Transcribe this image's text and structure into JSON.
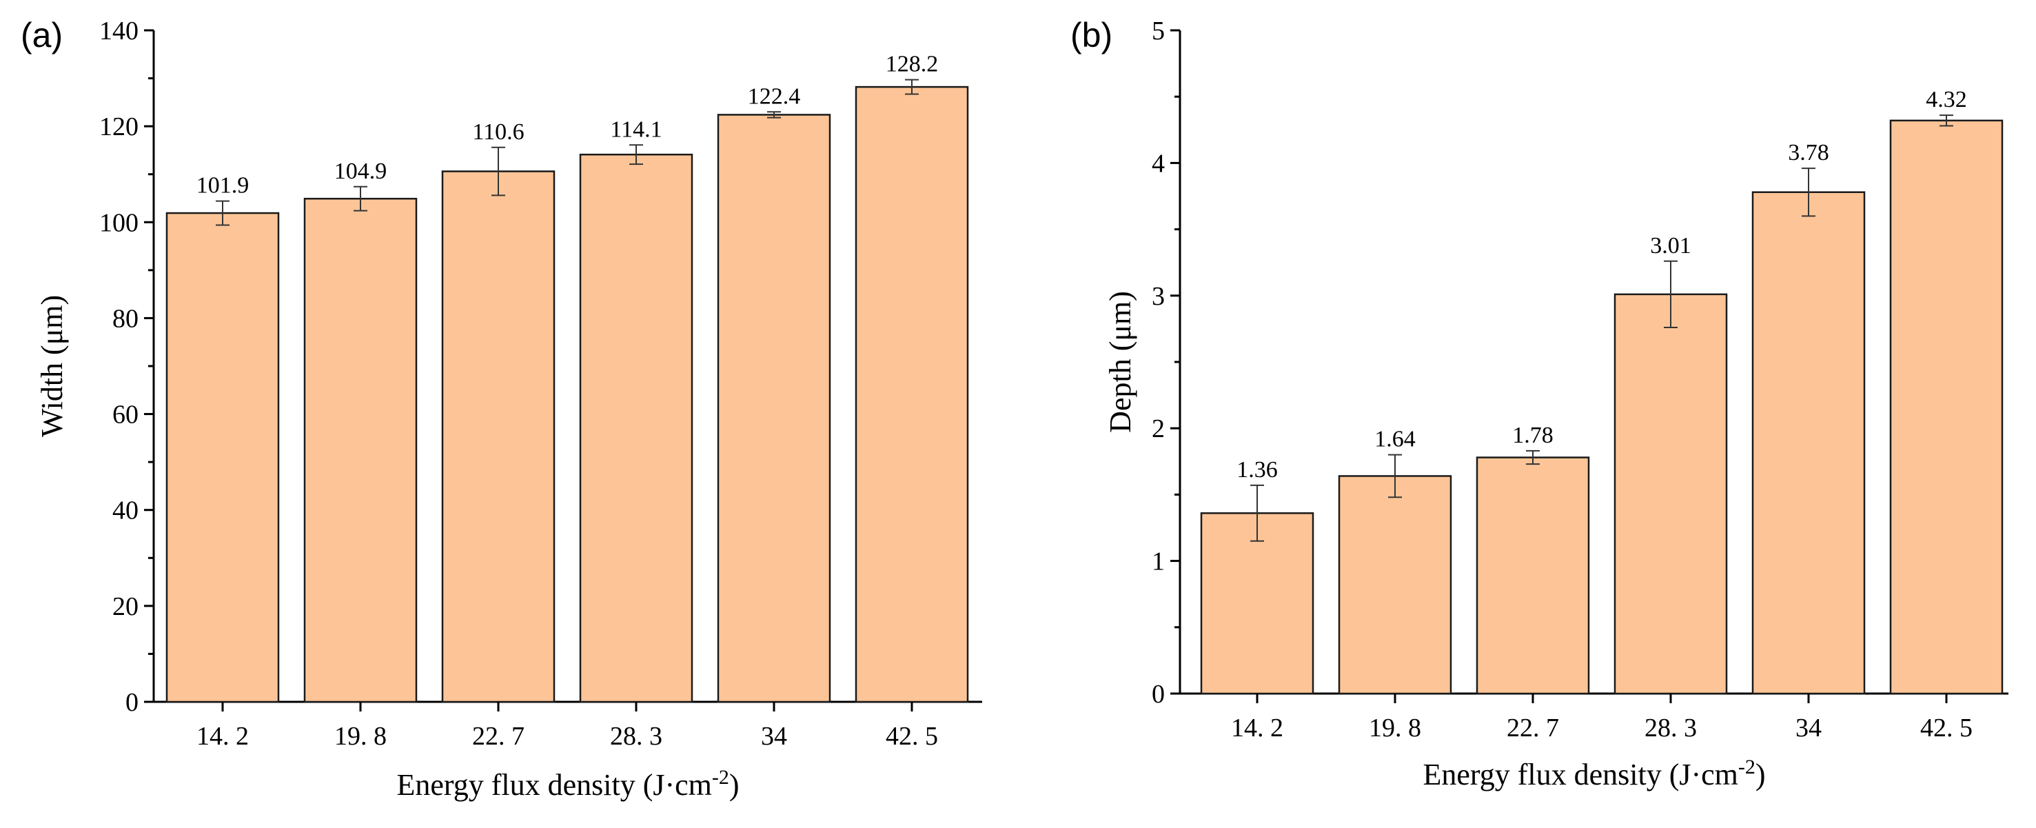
{
  "colors": {
    "bar_fill": "#FDC597",
    "bar_stroke": "#1a1a1a",
    "axis": "#000000",
    "error_bar": "#333333"
  },
  "chart_data": [
    {
      "type": "bar",
      "panel_label": "(a)",
      "categories": [
        "14. 2",
        "19. 8",
        "22. 7",
        "28. 3",
        "34",
        "42. 5"
      ],
      "values": [
        101.9,
        104.9,
        110.6,
        114.1,
        122.4,
        128.2
      ],
      "value_labels": [
        "101.9",
        "104.9",
        "110.6",
        "114.1",
        "122.4",
        "128.2"
      ],
      "errors": [
        2.5,
        2.5,
        5.0,
        2.0,
        0.6,
        1.5
      ],
      "xlabel_main": "Energy flux density (J·cm",
      "xlabel_sup": "-2",
      "xlabel_end": ")",
      "ylabel": "Width (μm)",
      "ylim": [
        0,
        140
      ],
      "yticks": [
        0,
        20,
        40,
        60,
        80,
        100,
        120,
        140
      ],
      "ytick_labels": [
        "0",
        "20",
        "40",
        "60",
        "80",
        "100",
        "120",
        "140"
      ],
      "grid": false
    },
    {
      "type": "bar",
      "panel_label": "(b)",
      "categories": [
        "14. 2",
        "19. 8",
        "22. 7",
        "28. 3",
        "34",
        "42. 5"
      ],
      "values": [
        1.36,
        1.64,
        1.78,
        3.01,
        3.78,
        4.32
      ],
      "value_labels": [
        "1.36",
        "1.64",
        "1.78",
        "3.01",
        "3.78",
        "4.32"
      ],
      "errors": [
        0.21,
        0.16,
        0.05,
        0.25,
        0.18,
        0.04
      ],
      "xlabel_main": "Energy flux density (J·cm",
      "xlabel_sup": "-2",
      "xlabel_end": ")",
      "ylabel": "Depth (μm)",
      "ylim": [
        0,
        5
      ],
      "yticks": [
        0,
        1,
        2,
        3,
        4,
        5
      ],
      "ytick_labels": [
        "0",
        "1",
        "2",
        "3",
        "4",
        "5"
      ],
      "grid": false
    }
  ]
}
